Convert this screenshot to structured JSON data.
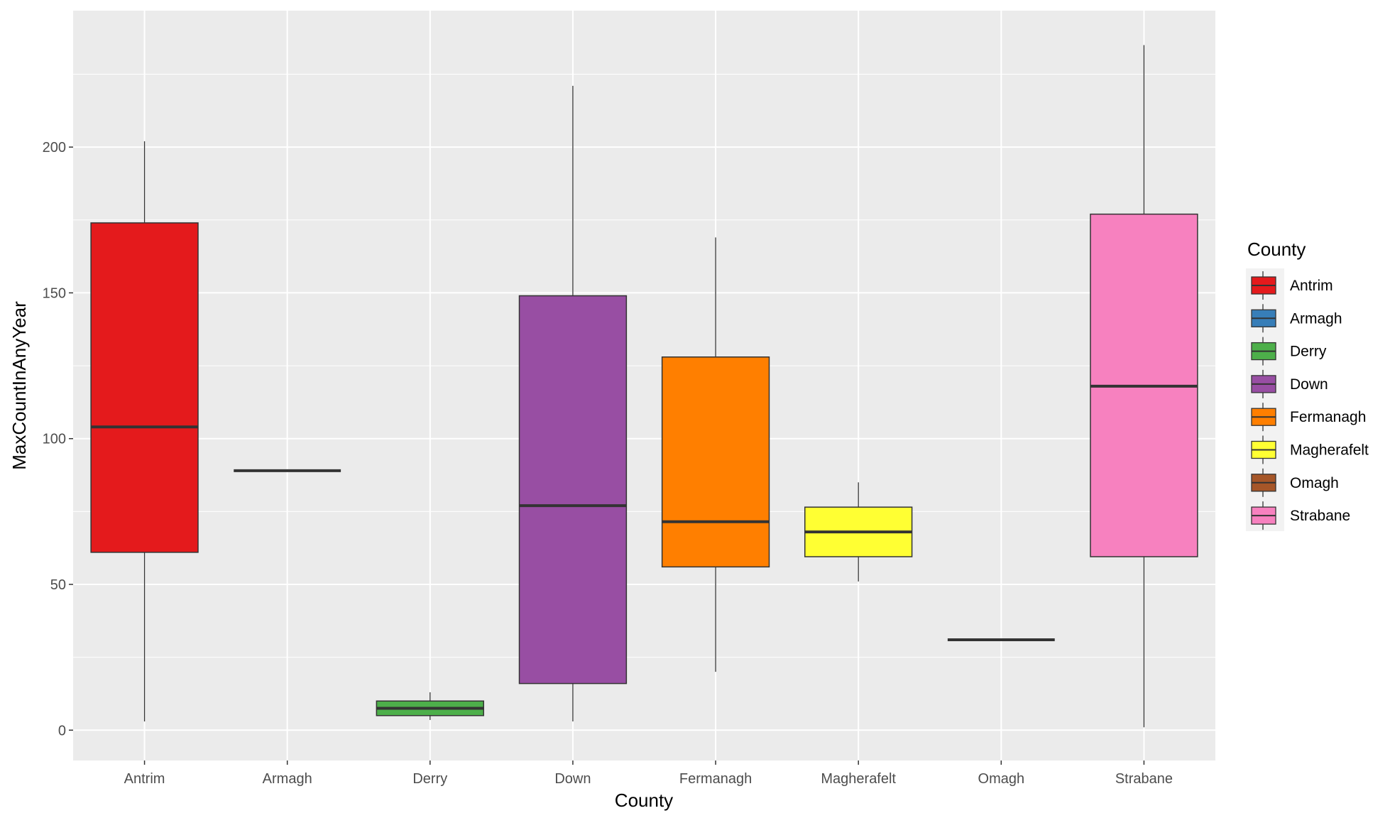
{
  "chart_data": {
    "type": "boxplot",
    "title": "",
    "xlabel": "County",
    "ylabel": "MaxCountInAnyYear",
    "ylim": [
      -10.4,
      246.8
    ],
    "yticks": [
      0,
      50,
      100,
      150,
      200
    ],
    "grid": true,
    "legend": {
      "title": "County",
      "placement": "right"
    },
    "categories": [
      "Antrim",
      "Armagh",
      "Derry",
      "Down",
      "Fermanagh",
      "Magherafelt",
      "Omagh",
      "Strabane"
    ],
    "colors": [
      "#E41A1C",
      "#377EB8",
      "#4DAF4A",
      "#984EA3",
      "#FF7F00",
      "#FFFF33",
      "#A65628",
      "#F781BF"
    ],
    "boxes": [
      {
        "county": "Antrim",
        "lower": 3,
        "q1": 61,
        "median": 104,
        "q3": 174,
        "upper": 202
      },
      {
        "county": "Armagh",
        "lower": 89,
        "q1": 89,
        "median": 89,
        "q3": 89,
        "upper": 89
      },
      {
        "county": "Derry",
        "lower": 3.5,
        "q1": 5,
        "median": 7.5,
        "q3": 10,
        "upper": 13
      },
      {
        "county": "Down",
        "lower": 3,
        "q1": 16,
        "median": 77,
        "q3": 149,
        "upper": 221
      },
      {
        "county": "Fermanagh",
        "lower": 20,
        "q1": 56,
        "median": 71.5,
        "q3": 128,
        "upper": 169
      },
      {
        "county": "Magherafelt",
        "lower": 51,
        "q1": 59.5,
        "median": 68,
        "q3": 76.5,
        "upper": 85
      },
      {
        "county": "Omagh",
        "lower": 31,
        "q1": 31,
        "median": 31,
        "q3": 31,
        "upper": 31
      },
      {
        "county": "Strabane",
        "lower": 1,
        "q1": 59.5,
        "median": 118,
        "q3": 177,
        "upper": 235
      }
    ]
  }
}
